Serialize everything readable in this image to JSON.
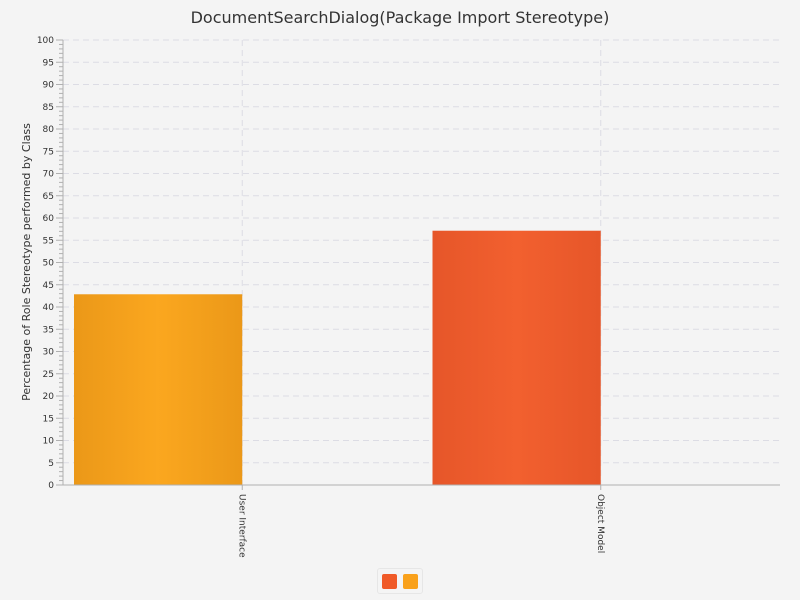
{
  "chart_data": {
    "type": "bar",
    "title": "DocumentSearchDialog(Package Import Stereotype)",
    "xlabel": "",
    "ylabel": "Percentage of Role Stereotype performed by Class",
    "ylim": [
      0,
      100
    ],
    "y_ticks": [
      "0",
      "5",
      "10",
      "15",
      "20",
      "25",
      "30",
      "35",
      "40",
      "45",
      "50",
      "55",
      "60",
      "65",
      "70",
      "75",
      "80",
      "85",
      "90",
      "95",
      "100"
    ],
    "categories": [
      "User Interface",
      "Object Model"
    ],
    "values": [
      42.86,
      57.14
    ],
    "bar_colors": [
      "#f9a11b",
      "#f05a28"
    ],
    "grid": true,
    "legend_position": "bottom",
    "legend_colors": [
      "#f05a28",
      "#f9a11b"
    ]
  }
}
